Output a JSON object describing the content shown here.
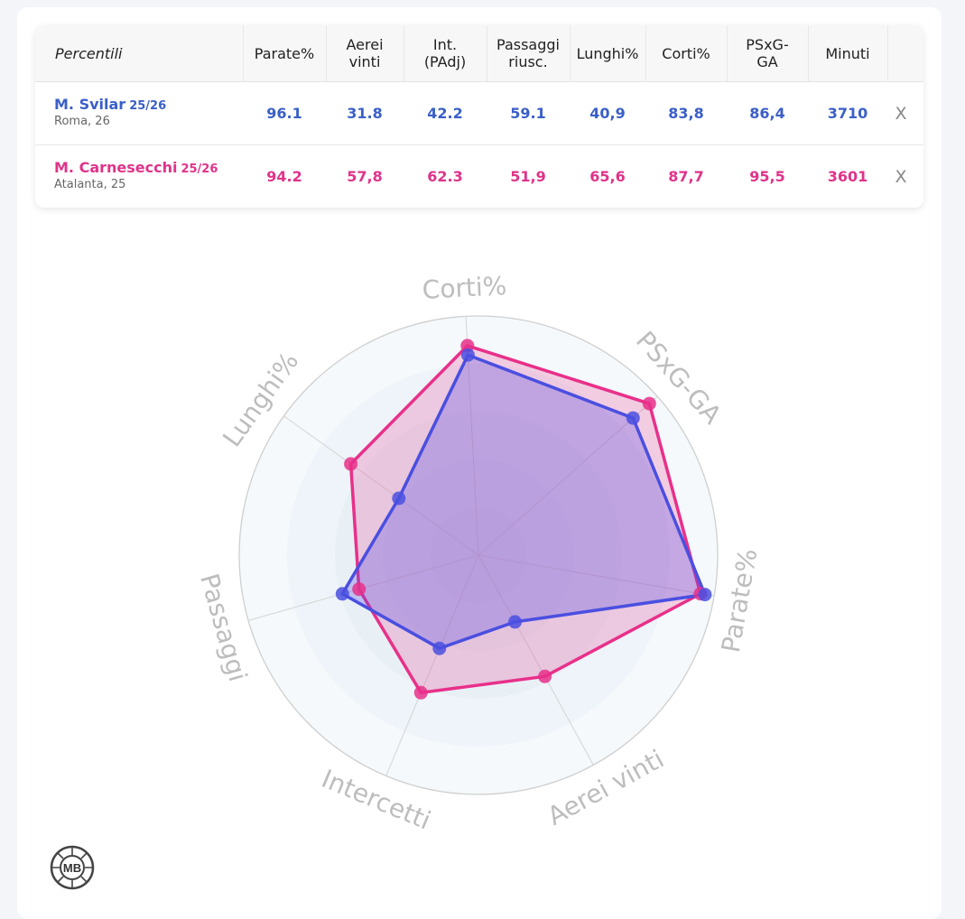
{
  "table": {
    "header_first": "Percentili",
    "headers": [
      "Parate%",
      "Aerei\nvinti",
      "Int.\n(PAdj)",
      "Passaggi\nriusc.",
      "Lunghi%",
      "Corti%",
      "PSxG-\nGA",
      "Minuti"
    ],
    "rows": [
      {
        "name": "M. Svilar",
        "season": "25/26",
        "team": "Roma, 26",
        "values": [
          "96.1",
          "31.8",
          "42.2",
          "59.1",
          "40,9",
          "83,8",
          "86,4",
          "3710"
        ],
        "remove_label": "X"
      },
      {
        "name": "M. Carnesecchi",
        "season": "25/26",
        "team": "Atalanta, 25",
        "values": [
          "94.2",
          "57,8",
          "62.3",
          "51,9",
          "65,6",
          "87,7",
          "95,5",
          "3601"
        ],
        "remove_label": "X"
      }
    ]
  },
  "logo_text": "MB",
  "colors": {
    "blue": "#3a5fc8",
    "pink": "#e0338a",
    "blue_line": "#4a4fe0",
    "pink_line": "#e8308a"
  },
  "chart_data": {
    "type": "radar",
    "axes": [
      "Corti%",
      "PSxG-GA",
      "Parate%",
      "Aerei vinti",
      "Intercetti",
      "Passaggi",
      "Lunghi%"
    ],
    "range": [
      0,
      100
    ],
    "series": [
      {
        "name": "M. Svilar",
        "color": "#4a4fe0",
        "values": [
          83.8,
          86.4,
          96.1,
          31.8,
          42.2,
          59.1,
          40.9
        ]
      },
      {
        "name": "M. Carnesecchi",
        "color": "#e8308a",
        "values": [
          87.7,
          95.5,
          94.2,
          57.8,
          62.3,
          51.9,
          65.6
        ]
      }
    ]
  }
}
